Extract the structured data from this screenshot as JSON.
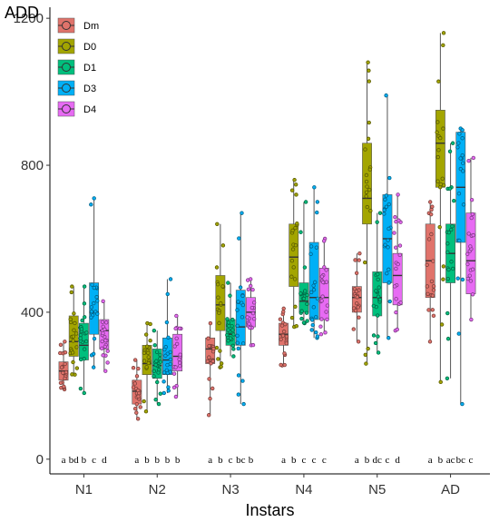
{
  "chart_data": {
    "type": "box",
    "ylabel": "ADD",
    "xlabel": "Instars",
    "ylim": [
      -40,
      1230
    ],
    "yticks": [
      0,
      400,
      800,
      1200
    ],
    "categories": [
      "N1",
      "N2",
      "N3",
      "N4",
      "N5",
      "AD"
    ],
    "legend_position": "top-left",
    "series": [
      {
        "name": "Dm",
        "color": "#E0736B",
        "boxes": [
          {
            "min": 190,
            "q1": 215,
            "median": 240,
            "q3": 265,
            "max": 320
          },
          {
            "min": 110,
            "q1": 150,
            "median": 185,
            "q3": 215,
            "max": 270
          },
          {
            "min": 120,
            "q1": 260,
            "median": 300,
            "q3": 330,
            "max": 370
          },
          {
            "min": 255,
            "q1": 310,
            "median": 340,
            "q3": 370,
            "max": 410
          },
          {
            "min": 320,
            "q1": 400,
            "median": 440,
            "q3": 470,
            "max": 560
          },
          {
            "min": 320,
            "q1": 440,
            "median": 540,
            "q3": 640,
            "max": 700
          }
        ],
        "labels": [
          "a",
          "a",
          "a",
          "a",
          "a",
          "a"
        ]
      },
      {
        "name": "D0",
        "color": "#A3A500",
        "boxes": [
          {
            "min": 230,
            "q1": 280,
            "median": 320,
            "q3": 390,
            "max": 470
          },
          {
            "min": 130,
            "q1": 230,
            "median": 260,
            "q3": 310,
            "max": 370
          },
          {
            "min": 250,
            "q1": 350,
            "median": 420,
            "q3": 500,
            "max": 640
          },
          {
            "min": 360,
            "q1": 470,
            "median": 550,
            "q3": 640,
            "max": 760
          },
          {
            "min": 260,
            "q1": 640,
            "median": 710,
            "q3": 860,
            "max": 1080
          },
          {
            "min": 210,
            "q1": 740,
            "median": 860,
            "q3": 950,
            "max": 1160
          }
        ],
        "labels": [
          "bd",
          "b",
          "b",
          "b",
          "b",
          "b"
        ]
      },
      {
        "name": "D1",
        "color": "#00BF7D",
        "boxes": [
          {
            "min": 180,
            "q1": 270,
            "median": 310,
            "q3": 370,
            "max": 470
          },
          {
            "min": 150,
            "q1": 220,
            "median": 255,
            "q3": 300,
            "max": 350
          },
          {
            "min": 280,
            "q1": 310,
            "median": 340,
            "q3": 380,
            "max": 480
          },
          {
            "min": 370,
            "q1": 400,
            "median": 430,
            "q3": 480,
            "max": 700
          },
          {
            "min": 290,
            "q1": 390,
            "median": 440,
            "q3": 510,
            "max": 670
          },
          {
            "min": 220,
            "q1": 480,
            "median": 560,
            "q3": 640,
            "max": 860
          }
        ],
        "labels": [
          "b",
          "b",
          "c",
          "c",
          "dc",
          "ac"
        ]
      },
      {
        "name": "D3",
        "color": "#00B0F6",
        "boxes": [
          {
            "min": 250,
            "q1": 340,
            "median": 400,
            "q3": 480,
            "max": 710
          },
          {
            "min": 180,
            "q1": 230,
            "median": 270,
            "q3": 330,
            "max": 490
          },
          {
            "min": 150,
            "q1": 310,
            "median": 360,
            "q3": 460,
            "max": 670
          },
          {
            "min": 330,
            "q1": 380,
            "median": 440,
            "q3": 590,
            "max": 740
          },
          {
            "min": 330,
            "q1": 480,
            "median": 600,
            "q3": 720,
            "max": 990
          },
          {
            "min": 150,
            "q1": 590,
            "median": 740,
            "q3": 890,
            "max": 900
          }
        ],
        "labels": [
          "c",
          "b",
          "bc",
          "c",
          "c",
          "bc"
        ]
      },
      {
        "name": "D4",
        "color": "#E76BF3",
        "boxes": [
          {
            "min": 240,
            "q1": 300,
            "median": 350,
            "q3": 380,
            "max": 430
          },
          {
            "min": 170,
            "q1": 240,
            "median": 280,
            "q3": 340,
            "max": 390
          },
          {
            "min": 310,
            "q1": 360,
            "median": 400,
            "q3": 440,
            "max": 490
          },
          {
            "min": 340,
            "q1": 380,
            "median": 440,
            "q3": 520,
            "max": 600
          },
          {
            "min": 350,
            "q1": 420,
            "median": 500,
            "q3": 560,
            "max": 720
          },
          {
            "min": 380,
            "q1": 450,
            "median": 540,
            "q3": 670,
            "max": 820
          }
        ],
        "labels": [
          "d",
          "b",
          "b",
          "c",
          "d",
          "c"
        ]
      }
    ],
    "grid": false
  }
}
